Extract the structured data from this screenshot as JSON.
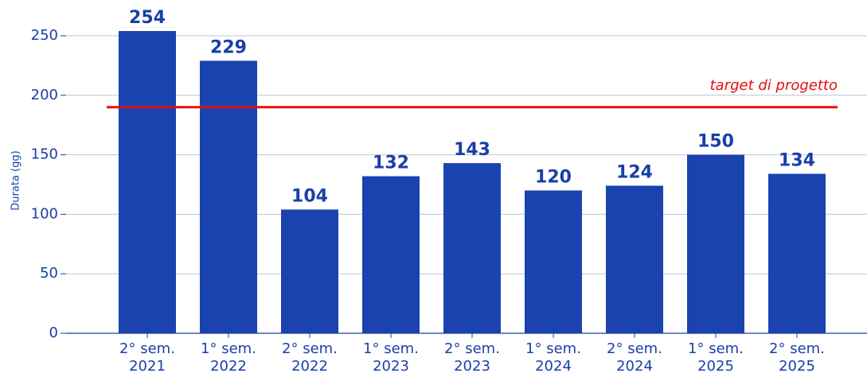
{
  "chart_data": {
    "type": "bar",
    "y_label": "Durata (gg)",
    "categories": [
      "2° sem.\n2021",
      "1° sem.\n2022",
      "2° sem.\n2022",
      "1° sem.\n2023",
      "2° sem.\n2023",
      "1° sem.\n2024",
      "2° sem.\n2024",
      "1° sem.\n2025",
      "2° sem.\n2025"
    ],
    "values": [
      254,
      229,
      104,
      132,
      143,
      120,
      124,
      150,
      134
    ],
    "color": "#1a43b0",
    "ylim": [
      0,
      270
    ],
    "yticks": [
      0,
      50,
      100,
      150,
      200,
      250
    ],
    "grid": true,
    "target": {
      "value": 190,
      "label": "target di progetto",
      "color": "#e01010"
    }
  }
}
